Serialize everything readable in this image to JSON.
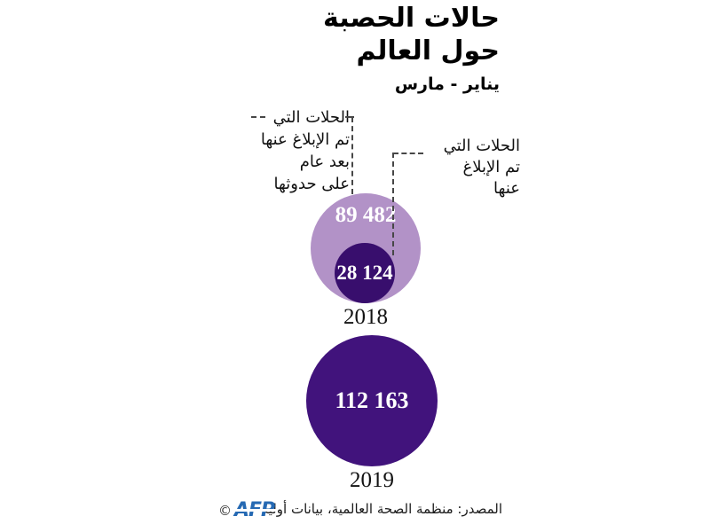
{
  "title": {
    "line1": "حالات الحصبة",
    "line2": "حول العالم",
    "period": "يناير - مارس"
  },
  "annotations": {
    "late": {
      "lines": [
        "الحلات التي",
        "تم الإبلاغ عنها",
        "بعد عام",
        "على حدوثها"
      ]
    },
    "reported": {
      "lines": [
        "الحلات التي",
        "تم الإبلاغ",
        "عنها"
      ]
    }
  },
  "chart_data": {
    "type": "bubble",
    "title": "حالات الحصبة حول العالم",
    "subtitle": "يناير - مارس",
    "legend_position": "annotations-with-dashed-leaders",
    "groups": [
      {
        "year": "2018",
        "bubbles": [
          {
            "label": "الحلات التي تم الإبلاغ عنها بعد عام على حدوثها",
            "value": 89482,
            "display": "89 482",
            "color": "#b292c7"
          },
          {
            "label": "الحلات التي تم الإبلاغ عنها",
            "value": 28124,
            "display": "28 124",
            "color": "#380e6d"
          }
        ]
      },
      {
        "year": "2019",
        "bubbles": [
          {
            "label": "الحلات التي تم الإبلاغ عنها",
            "value": 112163,
            "display": "112 163",
            "color": "#41137c"
          }
        ]
      }
    ]
  },
  "footer": {
    "copyright": "©",
    "credit": "AFP",
    "source": "المصدر: منظمة الصحة العالمية، بيانات أولية"
  },
  "colors": {
    "light_purple": "#b292c7",
    "dark_purple_2018": "#380e6d",
    "purple_2019": "#41137c",
    "afp_blue": "#2569b3",
    "dash_gray": "#474747",
    "background": "#ffffff"
  }
}
